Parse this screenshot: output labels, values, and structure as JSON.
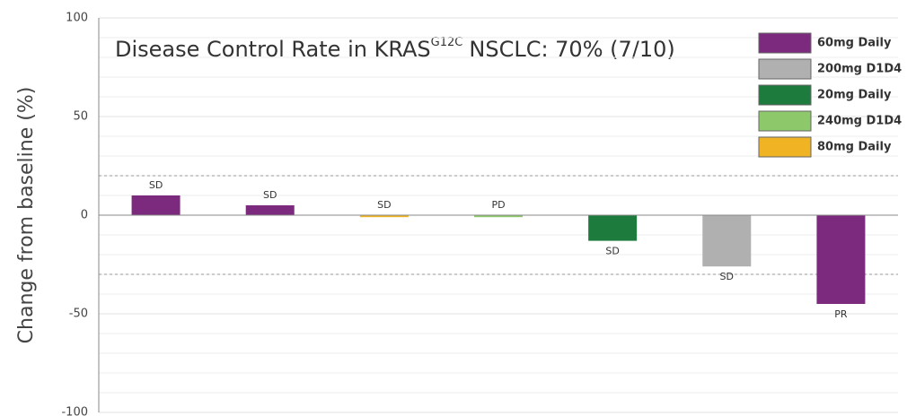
{
  "chart_data": {
    "type": "bar",
    "title": {
      "main": "Disease Control Rate in KRAS",
      "superscript": "G12C",
      "rest": "NSCLC: 70% (7/10)"
    },
    "y_label": "Change from baseline (%)",
    "categories": [
      null,
      null,
      null,
      null,
      null,
      null,
      null
    ],
    "values": [
      10,
      5,
      -1,
      -1,
      -13,
      -26,
      -45
    ],
    "colors": [
      "#7b2a7e",
      "#7b2a7e",
      "#f0b323",
      "#8dc86b",
      "#1e7b3e",
      "#b0b0b0",
      "#7b2a7e"
    ],
    "annotations": [
      "SD",
      "SD",
      "SD",
      "PD",
      "SD",
      "SD",
      "PR"
    ],
    "legend": [
      {
        "name": "60mg Daily",
        "color": "#7b2a7e"
      },
      {
        "name": "200mg D1D4",
        "color": "#b0b0b0"
      },
      {
        "name": "20mg Daily",
        "color": "#1e7b3e"
      },
      {
        "name": "240mg D1D4",
        "color": "#8dc86b"
      },
      {
        "name": "80mg Daily",
        "color": "#f0b323"
      }
    ],
    "legend_position": "upper right",
    "reference_lines": [
      20,
      -30
    ],
    "ylim": [
      -100,
      100
    ],
    "yticks": [
      -100,
      -50,
      0,
      50,
      100
    ],
    "minor_yticks": [
      -90,
      -80,
      -70,
      -60,
      -40,
      -30,
      -20,
      -10,
      10,
      20,
      30,
      40,
      60,
      70,
      80,
      90
    ],
    "grid": true
  }
}
